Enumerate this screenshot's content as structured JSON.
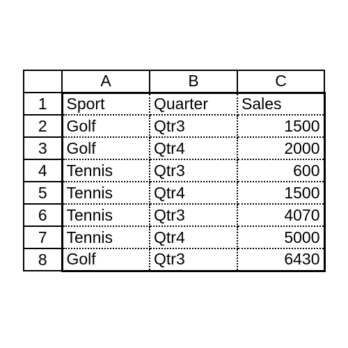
{
  "columns": [
    "A",
    "B",
    "C"
  ],
  "rows": [
    {
      "num": "1",
      "a": "Sport",
      "b": "Quarter",
      "c": "Sales",
      "c_align": "left"
    },
    {
      "num": "2",
      "a": "Golf",
      "b": "Qtr3",
      "c": "1500",
      "c_align": "right"
    },
    {
      "num": "3",
      "a": "Golf",
      "b": "Qtr4",
      "c": "2000",
      "c_align": "right"
    },
    {
      "num": "4",
      "a": "Tennis",
      "b": "Qtr3",
      "c": "600",
      "c_align": "right"
    },
    {
      "num": "5",
      "a": "Tennis",
      "b": "Qtr4",
      "c": "1500",
      "c_align": "right"
    },
    {
      "num": "6",
      "a": "Tennis",
      "b": "Qtr3",
      "c": "4070",
      "c_align": "right"
    },
    {
      "num": "7",
      "a": "Tennis",
      "b": "Qtr4",
      "c": "5000",
      "c_align": "right"
    },
    {
      "num": "8",
      "a": "Golf",
      "b": "Qtr3",
      "c": "6430",
      "c_align": "right"
    }
  ]
}
